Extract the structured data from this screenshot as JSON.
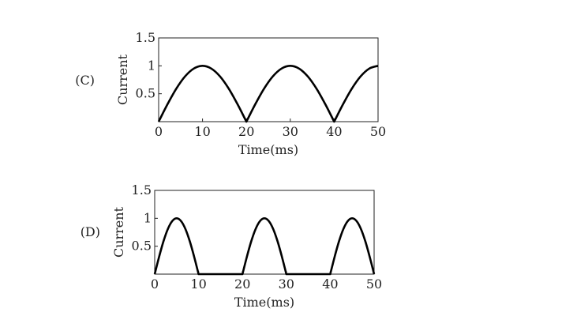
{
  "chart_data": [
    {
      "type": "line",
      "panel_label": "(C)",
      "xlabel": "Time(ms)",
      "ylabel": "Current",
      "xlim": [
        0,
        50
      ],
      "ylim": [
        0,
        1.5
      ],
      "x_ticks": [
        0,
        10,
        20,
        30,
        40,
        50
      ],
      "y_ticks": [
        0.5,
        1,
        1.5
      ],
      "x_tick_labels": [
        "0",
        "10",
        "20",
        "30",
        "40",
        "50"
      ],
      "y_tick_labels": [
        "0.5",
        "1",
        "1.5"
      ],
      "grid": false,
      "series": [
        {
          "x": [
            0,
            2,
            4,
            6,
            8,
            10,
            12,
            14,
            16,
            18,
            20,
            22,
            24,
            26,
            28,
            30,
            32,
            34,
            36,
            38,
            40,
            42,
            44,
            46,
            48,
            50
          ],
          "y": [
            0,
            0.309,
            0.588,
            0.809,
            0.951,
            1,
            0.951,
            0.809,
            0.588,
            0.309,
            0,
            0.309,
            0.588,
            0.809,
            0.951,
            1,
            0.951,
            0.809,
            0.588,
            0.309,
            0,
            0.309,
            0.588,
            0.809,
            0.951,
            1
          ]
        }
      ]
    },
    {
      "type": "line",
      "panel_label": "(D)",
      "xlabel": "Time(ms)",
      "ylabel": "Current",
      "xlim": [
        0,
        50
      ],
      "ylim": [
        0,
        1.5
      ],
      "x_ticks": [
        0,
        10,
        20,
        30,
        40,
        50
      ],
      "y_ticks": [
        0.5,
        1,
        1.5
      ],
      "x_tick_labels": [
        "0",
        "10",
        "20",
        "30",
        "40",
        "50"
      ],
      "y_tick_labels": [
        "0.5",
        "1",
        "1.5"
      ],
      "grid": false,
      "series": [
        {
          "x": [
            0,
            1,
            2,
            3,
            4,
            5,
            6,
            7,
            8,
            9,
            10,
            20,
            21,
            22,
            23,
            24,
            25,
            26,
            27,
            28,
            29,
            30,
            40,
            41,
            42,
            43,
            44,
            45,
            46,
            47,
            48,
            49,
            50
          ],
          "y": [
            0,
            0.309,
            0.588,
            0.809,
            0.951,
            1,
            0.951,
            0.809,
            0.588,
            0.309,
            0,
            0,
            0.309,
            0.588,
            0.809,
            0.951,
            1,
            0.951,
            0.809,
            0.588,
            0.309,
            0,
            0,
            0.309,
            0.588,
            0.809,
            0.951,
            1,
            0.951,
            0.809,
            0.588,
            0.309,
            0
          ]
        }
      ]
    }
  ]
}
